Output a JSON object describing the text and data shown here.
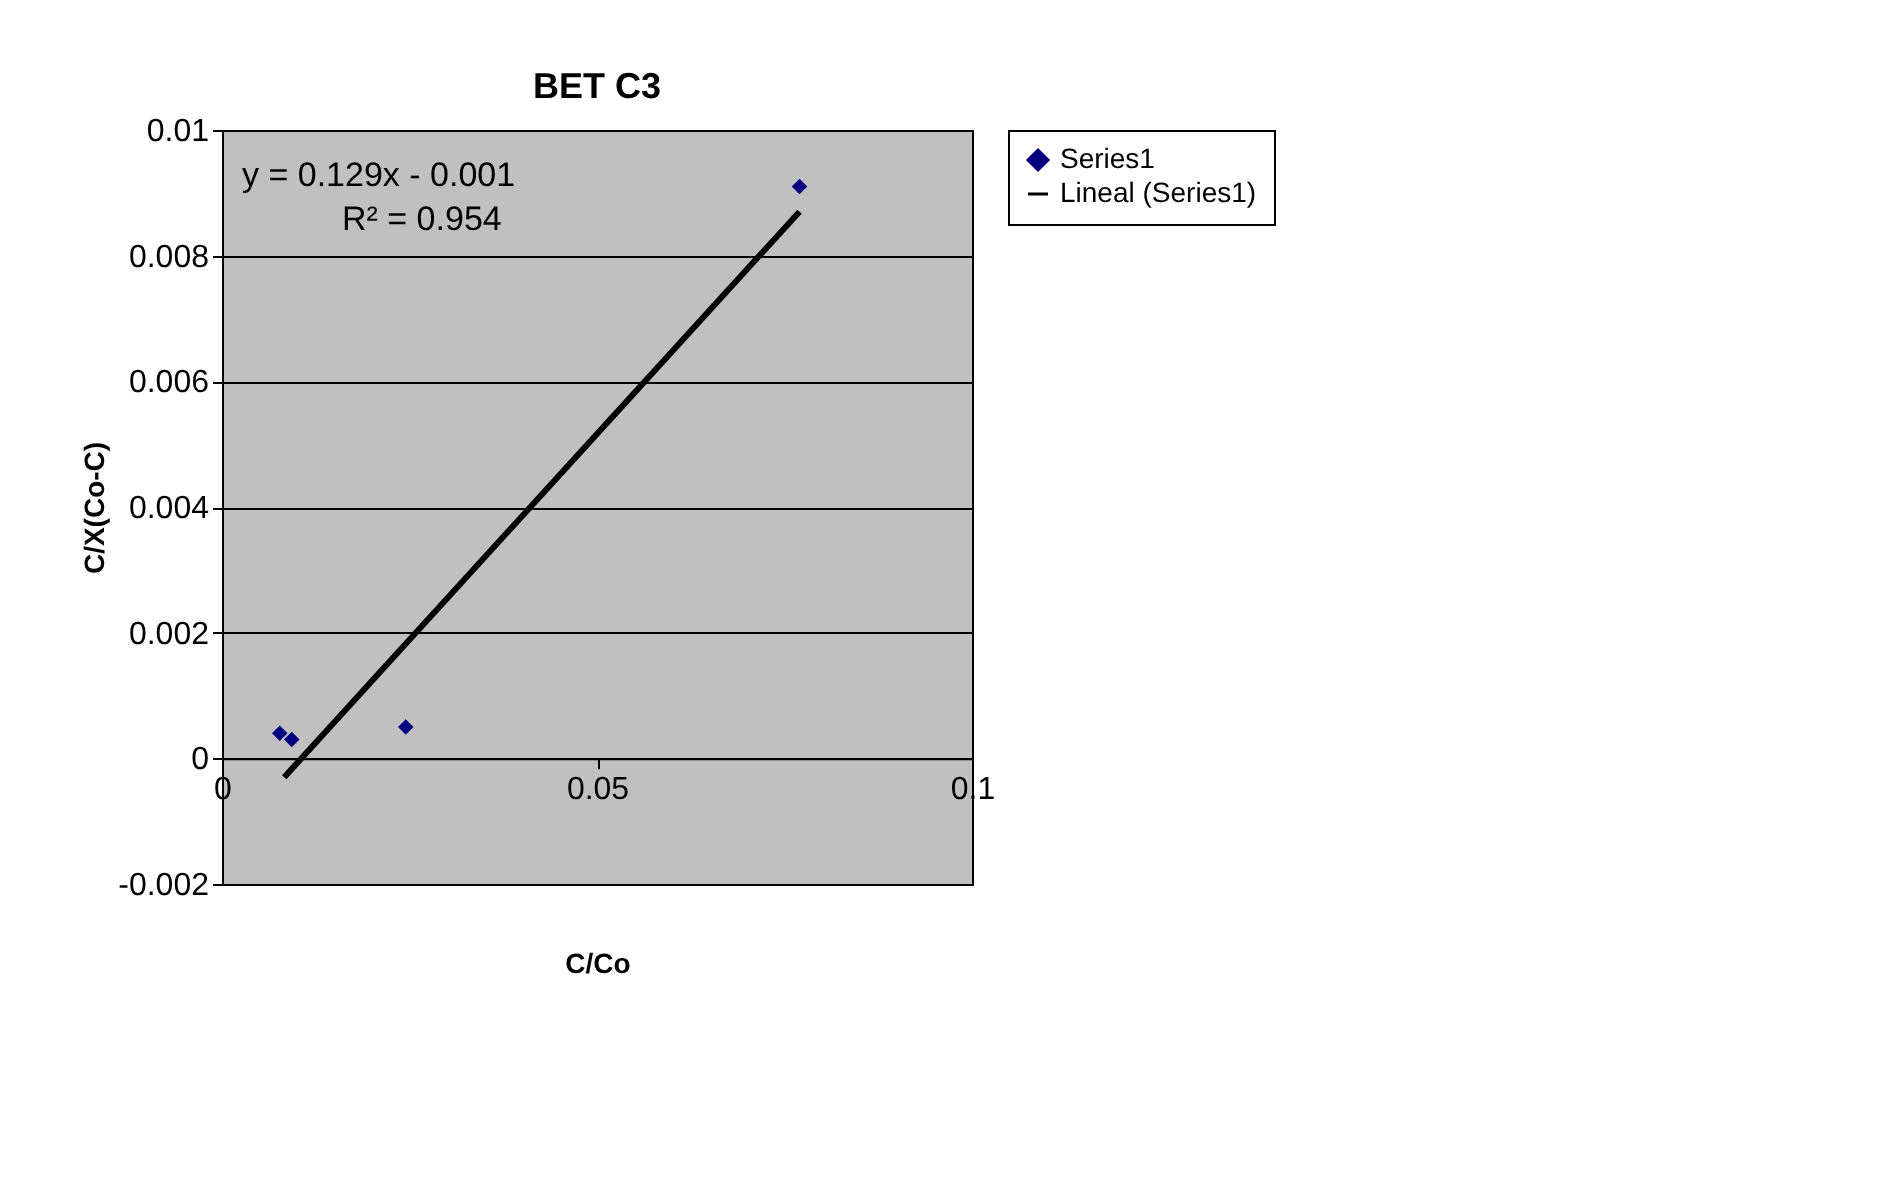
{
  "chart_data": {
    "type": "scatter",
    "title": "BET C3",
    "xlabel": "C/Co",
    "ylabel": "C/X(Co-C)",
    "series": [
      {
        "name": "Series1",
        "color": "#000080",
        "marker": "diamond",
        "x": [
          0.0077,
          0.0093,
          0.0245,
          0.077
        ],
        "values": [
          0.0004,
          0.0003,
          0.0005,
          0.0091
        ]
      },
      {
        "name": "Lineal (Series1)",
        "type": "line",
        "color": "#000000",
        "line_style": "solid",
        "marker": "none",
        "x": [
          0.0083,
          0.077
        ],
        "values": [
          -0.0003,
          0.0087
        ]
      }
    ],
    "xlim": [
      0,
      0.1
    ],
    "xticks": [
      0,
      0.05,
      0.1
    ],
    "ylim": [
      -0.002,
      0.01
    ],
    "yticks": [
      -0.002,
      0,
      0.002,
      0.004,
      0.006,
      0.008,
      0.01
    ],
    "grid": "y",
    "legend": "right",
    "annotations": [
      "y = 0.129x - 0.001",
      "R² = 0.954"
    ]
  }
}
